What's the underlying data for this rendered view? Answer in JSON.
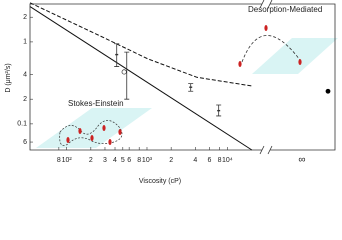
{
  "chart_data": {
    "type": "loglog",
    "xlabel": "Viscosity (cP)",
    "ylabel": "D (μm²/s)",
    "xlim": [
      35,
      27000
    ],
    "ylim": [
      0.048,
      2.9
    ],
    "xticks": [
      {
        "value": 80,
        "label": "8"
      },
      {
        "value": 100,
        "label": "10²"
      },
      {
        "value": 200,
        "label": "2"
      },
      {
        "value": 300,
        "label": "3"
      },
      {
        "value": 400,
        "label": "4"
      },
      {
        "value": 500,
        "label": "5"
      },
      {
        "value": 600,
        "label": "6"
      },
      {
        "value": 800,
        "label": "8"
      },
      {
        "value": 1000,
        "label": "10³"
      },
      {
        "value": 2000,
        "label": "2"
      },
      {
        "value": 4000,
        "label": "4"
      },
      {
        "value": 6000,
        "label": "6"
      },
      {
        "value": 8000,
        "label": "8"
      },
      {
        "value": 10000,
        "label": "10⁴"
      }
    ],
    "yticks": [
      {
        "value": 2,
        "label": "2"
      },
      1,
      {
        "value": 0.4,
        "label": "4"
      },
      {
        "value": 0.2,
        "label": "2"
      },
      0.1,
      {
        "value": 0.06,
        "label": "6"
      }
    ],
    "infinity_label": "∞",
    "infinity_value": 0.25,
    "points": {
      "x": [
        420,
        520,
        560,
        3500,
        7800
      ],
      "values": [
        0.7,
        0.43,
        0.42,
        0.28,
        0.145
      ],
      "err_low": [
        0.5,
        0.43,
        0.2,
        0.25,
        0.125
      ],
      "err_high": [
        0.95,
        0.43,
        0.75,
        0.31,
        0.17
      ],
      "markers": [
        "dash",
        "circle",
        "none",
        "dash",
        "dash"
      ]
    },
    "lines": [
      {
        "name": "Stokes-Einstein",
        "style": "solid",
        "x": [
          35,
          20200
        ],
        "values": [
          2.7,
          0.048
        ]
      },
      {
        "name": "Desorption-Mediated",
        "style": "dashed",
        "x": [
          35,
          253,
          1030,
          4180,
          20200
        ],
        "values": [
          3.0,
          1.2,
          0.62,
          0.37,
          0.29
        ]
      }
    ]
  }
}
